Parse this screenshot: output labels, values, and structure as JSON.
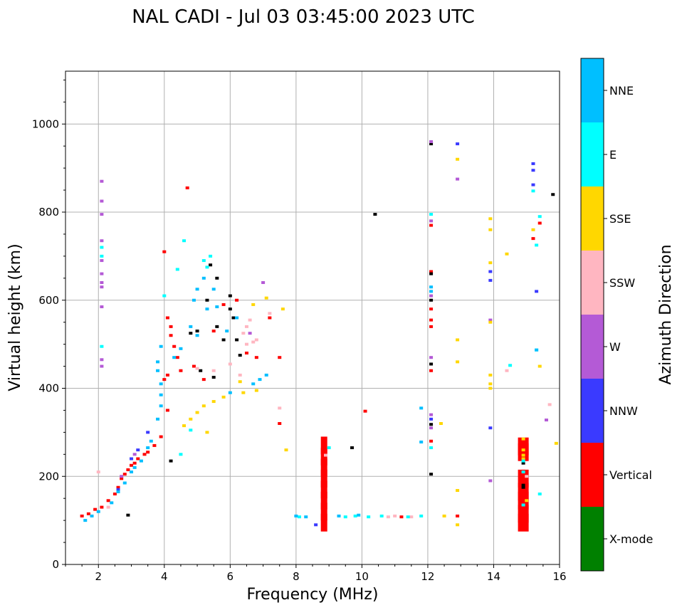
{
  "chart_data": {
    "type": "scatter",
    "title": "NAL CADI - Jul 03 03:45:00 2023 UTC",
    "xlabel": "Frequency (MHz)",
    "ylabel": "Virtual height (km)",
    "xlim": [
      1,
      16
    ],
    "ylim": [
      0,
      1120
    ],
    "x_ticks": [
      2,
      4,
      6,
      8,
      10,
      12,
      14,
      16
    ],
    "y_ticks": [
      0,
      200,
      400,
      600,
      800,
      1000
    ],
    "grid": true,
    "colorbar": {
      "label": "Azimuth Direction",
      "position": "right",
      "categories": [
        "X-mode",
        "Vertical",
        "NNW",
        "W",
        "SSW",
        "SSE",
        "E",
        "NNE"
      ],
      "colors": [
        "#008000",
        "#ff0000",
        "#3a3aff",
        "#b45ad6",
        "#ffb6c1",
        "#ffd700",
        "#00ffff",
        "#00bfff"
      ]
    },
    "series": [
      {
        "name": "Vertical",
        "points": [
          [
            1.5,
            110
          ],
          [
            1.7,
            115
          ],
          [
            1.9,
            125
          ],
          [
            2.1,
            130
          ],
          [
            2.3,
            145
          ],
          [
            2.5,
            160
          ],
          [
            2.6,
            175
          ],
          [
            2.7,
            195
          ],
          [
            2.8,
            205
          ],
          [
            2.9,
            215
          ],
          [
            3.0,
            225
          ],
          [
            3.1,
            230
          ],
          [
            3.2,
            240
          ],
          [
            3.4,
            250
          ],
          [
            3.5,
            255
          ],
          [
            3.7,
            270
          ],
          [
            3.9,
            290
          ],
          [
            4.1,
            350
          ],
          [
            4.0,
            420
          ],
          [
            4.1,
            430
          ],
          [
            4.2,
            520
          ],
          [
            4.2,
            540
          ],
          [
            4.1,
            560
          ],
          [
            4.3,
            495
          ],
          [
            4.4,
            470
          ],
          [
            4.0,
            710
          ],
          [
            4.7,
            855
          ],
          [
            4.5,
            440
          ],
          [
            4.9,
            450
          ],
          [
            5.2,
            420
          ],
          [
            5.5,
            530
          ],
          [
            5.8,
            590
          ],
          [
            6.2,
            600
          ],
          [
            6.5,
            480
          ],
          [
            6.8,
            470
          ],
          [
            7.2,
            560
          ],
          [
            7.5,
            470
          ],
          [
            7.5,
            320
          ],
          [
            10.1,
            348
          ],
          [
            12.1,
            280
          ],
          [
            12.1,
            440
          ],
          [
            12.1,
            540
          ],
          [
            12.1,
            555
          ],
          [
            12.1,
            580
          ],
          [
            12.1,
            665
          ],
          [
            12.1,
            770
          ],
          [
            15.2,
            740
          ],
          [
            15.4,
            775
          ],
          [
            11.2,
            108
          ],
          [
            12.9,
            110
          ]
        ]
      },
      {
        "name": "Vertical-bar",
        "points": [
          [
            8.85,
            95
          ],
          [
            8.85,
            120
          ],
          [
            8.85,
            145
          ],
          [
            8.85,
            170
          ],
          [
            8.85,
            195
          ],
          [
            8.85,
            220
          ],
          [
            8.85,
            245
          ],
          [
            8.85,
            270
          ],
          [
            14.9,
            95
          ],
          [
            14.9,
            115
          ],
          [
            14.9,
            145
          ],
          [
            14.9,
            165
          ],
          [
            14.9,
            195
          ],
          [
            14.9,
            255
          ],
          [
            14.9,
            268
          ]
        ]
      },
      {
        "name": "X-mode",
        "points": [
          [
            2.9,
            112
          ],
          [
            4.2,
            235
          ],
          [
            4.8,
            525
          ],
          [
            5.0,
            530
          ],
          [
            5.3,
            600
          ],
          [
            5.6,
            540
          ],
          [
            5.8,
            510
          ],
          [
            6.0,
            610
          ],
          [
            6.0,
            580
          ],
          [
            6.1,
            560
          ],
          [
            6.2,
            510
          ],
          [
            6.3,
            475
          ],
          [
            5.6,
            650
          ],
          [
            5.4,
            680
          ],
          [
            5.1,
            440
          ],
          [
            5.5,
            425
          ],
          [
            10.4,
            795
          ],
          [
            9.7,
            265
          ],
          [
            12.1,
            660
          ],
          [
            12.1,
            600
          ],
          [
            12.1,
            455
          ],
          [
            12.1,
            955
          ],
          [
            12.1,
            318
          ],
          [
            12.1,
            205
          ],
          [
            15.8,
            840
          ],
          [
            14.9,
            230
          ],
          [
            14.9,
            180
          ],
          [
            14.9,
            175
          ]
        ]
      },
      {
        "name": "NNW",
        "points": [
          [
            12.9,
            955
          ],
          [
            15.2,
            910
          ],
          [
            15.2,
            895
          ],
          [
            15.2,
            862
          ],
          [
            15.3,
            620
          ],
          [
            13.9,
            645
          ],
          [
            13.9,
            665
          ],
          [
            13.9,
            310
          ],
          [
            12.1,
            330
          ],
          [
            8.6,
            90
          ],
          [
            2.6,
            170
          ],
          [
            3.0,
            240
          ],
          [
            3.2,
            260
          ],
          [
            3.5,
            300
          ]
        ]
      },
      {
        "name": "W",
        "points": [
          [
            2.1,
            870
          ],
          [
            2.1,
            825
          ],
          [
            2.1,
            795
          ],
          [
            2.1,
            735
          ],
          [
            2.1,
            690
          ],
          [
            2.1,
            660
          ],
          [
            2.1,
            640
          ],
          [
            2.1,
            630
          ],
          [
            2.1,
            585
          ],
          [
            2.1,
            465
          ],
          [
            2.1,
            450
          ],
          [
            12.1,
            960
          ],
          [
            12.1,
            780
          ],
          [
            12.1,
            610
          ],
          [
            12.1,
            470
          ],
          [
            12.1,
            340
          ],
          [
            12.1,
            310
          ],
          [
            12.9,
            875
          ],
          [
            13.9,
            555
          ],
          [
            13.9,
            190
          ],
          [
            15.6,
            328
          ],
          [
            7.0,
            640
          ],
          [
            6.6,
            525
          ],
          [
            2.7,
            200
          ],
          [
            3.1,
            250
          ]
        ]
      },
      {
        "name": "SSW",
        "points": [
          [
            2.0,
            210
          ],
          [
            2.3,
            130
          ],
          [
            6.0,
            455
          ],
          [
            6.3,
            430
          ],
          [
            6.5,
            500
          ],
          [
            6.7,
            505
          ],
          [
            6.8,
            510
          ],
          [
            6.4,
            525
          ],
          [
            6.5,
            540
          ],
          [
            6.6,
            555
          ],
          [
            7.2,
            570
          ],
          [
            5.0,
            445
          ],
          [
            5.5,
            440
          ],
          [
            7.5,
            355
          ],
          [
            8.9,
            248
          ],
          [
            10.8,
            108
          ],
          [
            11.0,
            110
          ],
          [
            11.5,
            108
          ],
          [
            14.4,
            440
          ],
          [
            15.7,
            363
          ],
          [
            15.0,
            200
          ]
        ]
      },
      {
        "name": "SSE",
        "points": [
          [
            4.6,
            315
          ],
          [
            4.8,
            330
          ],
          [
            5.0,
            345
          ],
          [
            5.2,
            360
          ],
          [
            5.5,
            370
          ],
          [
            5.8,
            380
          ],
          [
            6.4,
            390
          ],
          [
            6.8,
            395
          ],
          [
            6.3,
            415
          ],
          [
            5.3,
            300
          ],
          [
            7.7,
            260
          ],
          [
            7.6,
            580
          ],
          [
            7.1,
            605
          ],
          [
            6.7,
            590
          ],
          [
            12.9,
            920
          ],
          [
            12.9,
            510
          ],
          [
            12.9,
            460
          ],
          [
            12.9,
            168
          ],
          [
            12.9,
            90
          ],
          [
            13.9,
            785
          ],
          [
            13.9,
            760
          ],
          [
            13.9,
            685
          ],
          [
            13.9,
            430
          ],
          [
            13.9,
            410
          ],
          [
            13.9,
            400
          ],
          [
            13.9,
            550
          ],
          [
            14.4,
            705
          ],
          [
            15.2,
            760
          ],
          [
            15.4,
            450
          ],
          [
            15.9,
            275
          ],
          [
            12.4,
            320
          ],
          [
            12.5,
            110
          ],
          [
            14.9,
            285
          ],
          [
            14.9,
            260
          ],
          [
            14.9,
            248
          ],
          [
            14.9,
            240
          ],
          [
            15.0,
            145
          ]
        ]
      },
      {
        "name": "E",
        "points": [
          [
            2.1,
            720
          ],
          [
            2.1,
            700
          ],
          [
            2.1,
            495
          ],
          [
            4.8,
            305
          ],
          [
            4.6,
            735
          ],
          [
            5.3,
            675
          ],
          [
            5.2,
            690
          ],
          [
            5.4,
            700
          ],
          [
            15.2,
            848
          ],
          [
            15.4,
            790
          ],
          [
            15.3,
            725
          ],
          [
            15.3,
            487
          ],
          [
            15.4,
            160
          ],
          [
            14.5,
            452
          ],
          [
            12.1,
            795
          ],
          [
            12.1,
            265
          ],
          [
            8.1,
            108
          ],
          [
            9.0,
            265
          ],
          [
            9.5,
            108
          ],
          [
            9.8,
            110
          ],
          [
            10.2,
            108
          ],
          [
            10.6,
            110
          ],
          [
            11.4,
            108
          ],
          [
            11.8,
            110
          ],
          [
            14.9,
            235
          ],
          [
            14.9,
            210
          ],
          [
            14.9,
            135
          ],
          [
            4.5,
            250
          ],
          [
            4.4,
            670
          ],
          [
            4.0,
            610
          ]
        ]
      },
      {
        "name": "NNE",
        "points": [
          [
            1.6,
            100
          ],
          [
            1.8,
            110
          ],
          [
            2.0,
            120
          ],
          [
            2.4,
            140
          ],
          [
            2.6,
            165
          ],
          [
            2.8,
            185
          ],
          [
            3.0,
            210
          ],
          [
            3.1,
            220
          ],
          [
            3.3,
            235
          ],
          [
            3.5,
            265
          ],
          [
            3.6,
            280
          ],
          [
            3.8,
            330
          ],
          [
            3.9,
            360
          ],
          [
            3.9,
            385
          ],
          [
            3.9,
            410
          ],
          [
            3.8,
            440
          ],
          [
            3.8,
            460
          ],
          [
            3.9,
            495
          ],
          [
            4.3,
            470
          ],
          [
            4.5,
            490
          ],
          [
            4.8,
            540
          ],
          [
            4.9,
            600
          ],
          [
            5.0,
            625
          ],
          [
            5.2,
            650
          ],
          [
            5.5,
            625
          ],
          [
            5.0,
            520
          ],
          [
            5.3,
            580
          ],
          [
            5.6,
            585
          ],
          [
            5.9,
            530
          ],
          [
            6.2,
            560
          ],
          [
            6.7,
            410
          ],
          [
            6.9,
            420
          ],
          [
            7.1,
            430
          ],
          [
            6.0,
            390
          ],
          [
            8.0,
            110
          ],
          [
            8.3,
            108
          ],
          [
            9.3,
            110
          ],
          [
            9.9,
            112
          ],
          [
            12.1,
            620
          ],
          [
            12.1,
            630
          ],
          [
            11.8,
            355
          ],
          [
            11.8,
            278
          ],
          [
            15.3,
            487
          ]
        ]
      }
    ]
  }
}
